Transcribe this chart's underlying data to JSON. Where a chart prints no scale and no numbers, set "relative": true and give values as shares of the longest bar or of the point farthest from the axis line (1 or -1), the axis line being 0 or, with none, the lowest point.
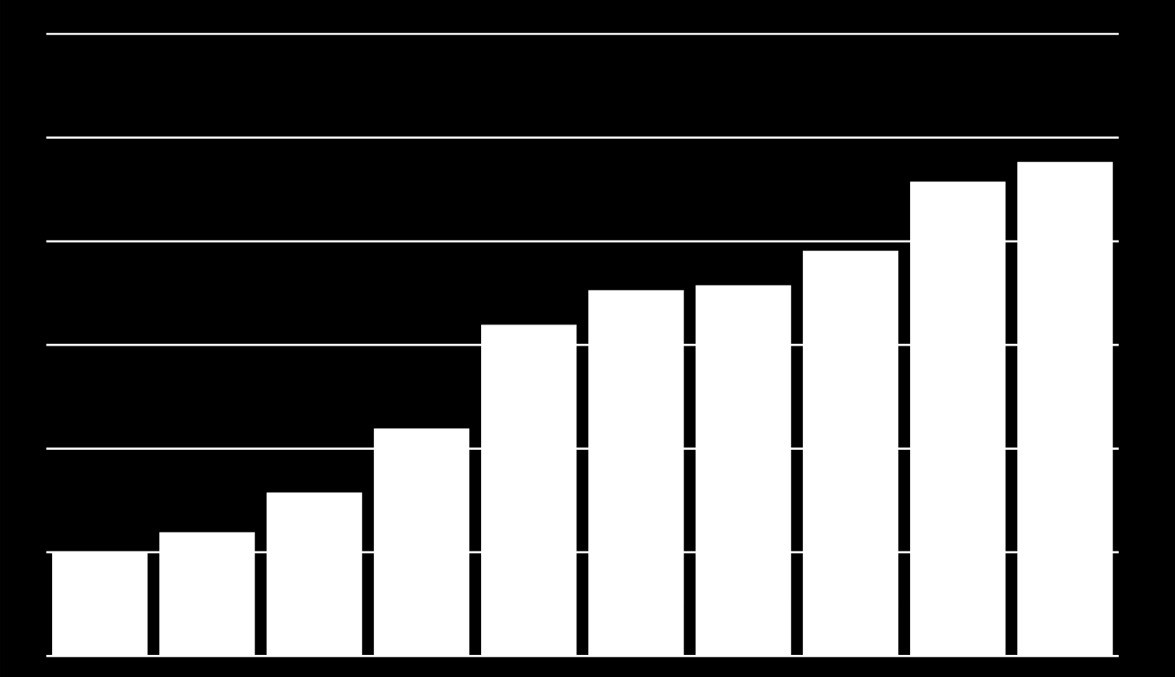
{
  "chart_data": {
    "type": "bar",
    "relative": true,
    "categories": [
      null,
      null,
      null,
      null,
      null,
      null,
      null,
      null,
      null,
      null
    ],
    "values": [
      0.21,
      0.25,
      0.33,
      0.46,
      0.67,
      0.74,
      0.75,
      0.82,
      0.96,
      1
    ],
    "color": "#ffffff",
    "grid": "y"
  }
}
